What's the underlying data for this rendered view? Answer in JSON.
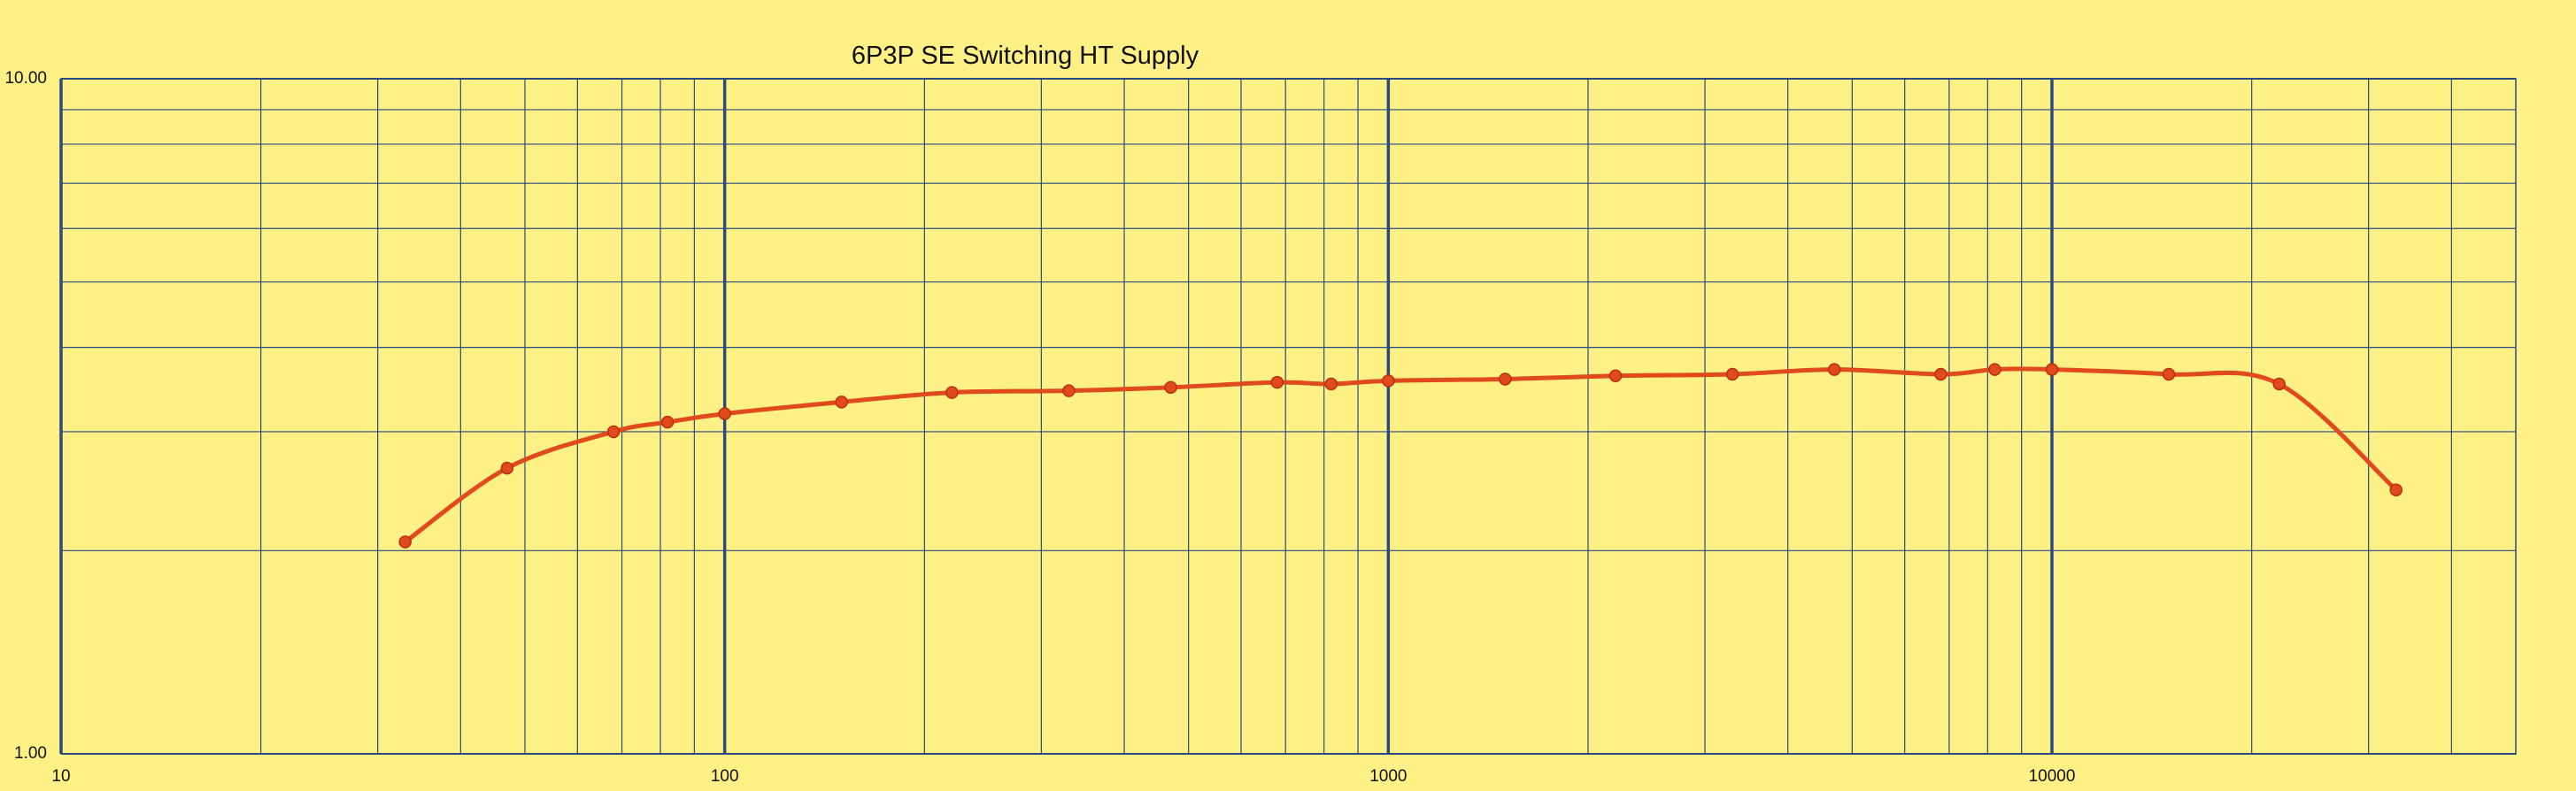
{
  "chart_data": {
    "type": "line",
    "title": "6P3P SE Switching HT Supply",
    "x": [
      33,
      47,
      68,
      82,
      100,
      150,
      220,
      330,
      470,
      680,
      820,
      1000,
      1500,
      2200,
      3300,
      4700,
      6800,
      8200,
      10000,
      15000,
      22000,
      33000
    ],
    "series": [
      {
        "name": "6P3P SE Switching HT Supply",
        "color": "#e04a1c",
        "values": [
          2.06,
          2.65,
          3.0,
          3.1,
          3.19,
          3.32,
          3.43,
          3.45,
          3.49,
          3.55,
          3.53,
          3.57,
          3.59,
          3.63,
          3.65,
          3.71,
          3.65,
          3.71,
          3.71,
          3.65,
          3.53,
          2.46
        ]
      }
    ],
    "xscale": "log",
    "yscale": "log",
    "xlim": [
      10,
      50000
    ],
    "ylim": [
      1,
      10
    ],
    "xticks": [
      10,
      100,
      1000,
      10000
    ],
    "yticks": [
      {
        "value": 1,
        "label": "1.00"
      },
      {
        "value": 10,
        "label": "10.00"
      }
    ],
    "grid": true,
    "minor_grid": true,
    "grid_color": "#2a4a80",
    "background": "#fdf186"
  }
}
